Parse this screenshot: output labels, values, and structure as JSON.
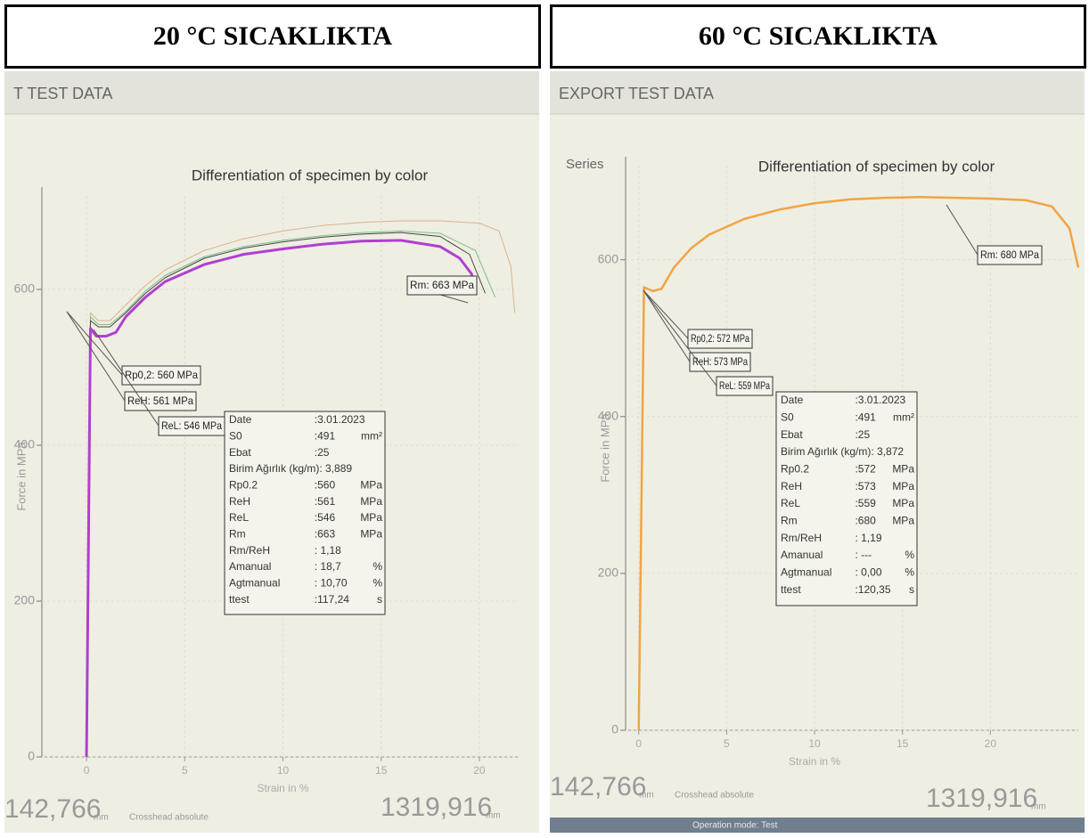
{
  "panels": [
    {
      "heading": "20 °C SICAKLIKTA",
      "window_title": "T TEST DATA",
      "position_left": "142,766",
      "position_left_unit": "mm",
      "position_left_label": "Crosshead absolute",
      "position_right": "1319,916",
      "position_right_unit": "mm",
      "record": [
        {
          "label": "Date",
          "value": ":3.01.2023"
        },
        {
          "label": "S0",
          "value": ":491",
          "unit": "mm²"
        },
        {
          "label": "Ebat",
          "value": ":25"
        },
        {
          "label": "Birim Ağırlık (kg/m): 3,889"
        },
        {
          "label": "Rp0.2",
          "value": ":560",
          "unit": "MPa"
        },
        {
          "label": "ReH",
          "value": ":561",
          "unit": "MPa"
        },
        {
          "label": "ReL",
          "value": ":546",
          "unit": "MPa"
        },
        {
          "label": "Rm",
          "value": ":663",
          "unit": "MPa"
        },
        {
          "label": "Rm/ReH",
          "value": ": 1,18"
        },
        {
          "label": "Amanual",
          "value": ": 18,7",
          "unit": "%"
        },
        {
          "label": "Agtmanual",
          "value": ": 10,70",
          "unit": "%"
        },
        {
          "label": "ttest",
          "value": ":117,24",
          "unit": "s"
        }
      ]
    },
    {
      "heading": "60 °C SICAKLIKTA",
      "window_title": "EXPORT TEST DATA",
      "series_label": "Series",
      "position_left": "142,766",
      "position_left_unit": "mm",
      "position_left_label": "Crosshead absolute",
      "position_right": "1319,916",
      "position_right_unit": "mm",
      "status": "Operation mode: Test",
      "record": [
        {
          "label": "Date",
          "value": ":3.01.2023"
        },
        {
          "label": "S0",
          "value": ":491",
          "unit": "mm²"
        },
        {
          "label": "Ebat",
          "value": ":25"
        },
        {
          "label": "Birim Ağırlık (kg/m): 3,872"
        },
        {
          "label": "Rp0.2",
          "value": ":572",
          "unit": "MPa"
        },
        {
          "label": "ReH",
          "value": ":573",
          "unit": "MPa"
        },
        {
          "label": "ReL",
          "value": ":559",
          "unit": "MPa"
        },
        {
          "label": "Rm",
          "value": ":680",
          "unit": "MPa"
        },
        {
          "label": "Rm/ReH",
          "value": ": 1,19"
        },
        {
          "label": "Amanual",
          "value": ": ---",
          "unit": "%"
        },
        {
          "label": "Agtmanual",
          "value": ": 0,00",
          "unit": "%"
        },
        {
          "label": "ttest",
          "value": ":120,35",
          "unit": "s"
        }
      ]
    }
  ],
  "chart_data": [
    {
      "type": "line",
      "title": "Differentiation of specimen by color",
      "y_label": "Force in MPa",
      "x_label": "Strain in %",
      "xlim": [
        -2,
        22
      ],
      "xticks": [
        0,
        5,
        10,
        15,
        20
      ],
      "ylim": [
        0,
        720
      ],
      "yticks": [
        0,
        200,
        400,
        600
      ],
      "annotations": [
        "Rm: 663 MPa",
        "Rp0,2: 560 MPa",
        "ReH: 561 MPa",
        "ReL: 546 MPa"
      ],
      "series": [
        {
          "color": "#d9b48c",
          "x": [
            0,
            0.2,
            0.6,
            1.2,
            2,
            3,
            4,
            6,
            8,
            10,
            12,
            14,
            16,
            18,
            20,
            21,
            21.6,
            21.8
          ],
          "values": [
            0,
            570,
            560,
            560,
            580,
            605,
            625,
            650,
            665,
            675,
            682,
            686,
            688,
            688,
            685,
            675,
            630,
            570
          ]
        },
        {
          "color": "#7fbf8a",
          "x": [
            0,
            0.2,
            0.6,
            1.2,
            2,
            3,
            4,
            6,
            8,
            10,
            12,
            14,
            16,
            18,
            19.8,
            20.8
          ],
          "values": [
            0,
            565,
            555,
            555,
            572,
            598,
            618,
            642,
            655,
            663,
            669,
            673,
            675,
            672,
            650,
            590
          ]
        },
        {
          "color": "#444444",
          "x": [
            0,
            0.2,
            0.6,
            1.2,
            2,
            3,
            4,
            6,
            8,
            10,
            12,
            14,
            16,
            18,
            19.5,
            20.3
          ],
          "values": [
            0,
            560,
            552,
            552,
            570,
            595,
            615,
            640,
            653,
            661,
            667,
            671,
            673,
            668,
            645,
            595
          ]
        },
        {
          "color": "#b03fd0",
          "x": [
            0,
            0.2,
            0.5,
            1,
            1.5,
            2,
            3,
            4,
            6,
            8,
            10,
            12,
            14,
            16,
            18,
            19,
            19.6,
            19.8
          ],
          "values": [
            0,
            550,
            540,
            540,
            545,
            565,
            590,
            610,
            632,
            645,
            652,
            658,
            662,
            663,
            655,
            640,
            620,
            600
          ]
        }
      ]
    },
    {
      "type": "line",
      "title": "Differentiation of specimen by color",
      "y_label": "Force in MPa",
      "x_label": "Strain in %",
      "xlim": [
        -1,
        25
      ],
      "xticks": [
        0,
        5,
        10,
        15,
        20
      ],
      "ylim": [
        0,
        720
      ],
      "yticks": [
        0,
        200,
        400,
        600
      ],
      "annotations": [
        "Rm: 680 MPa",
        "Rp0,2: 572 MPa",
        "ReH: 573 MPa",
        "ReL: 559 MPa"
      ],
      "series": [
        {
          "color": "#f0a444",
          "x": [
            0,
            0.3,
            0.8,
            1.3,
            2,
            3,
            4,
            6,
            8,
            10,
            12,
            14,
            16,
            18,
            20,
            22,
            23.5,
            24.5,
            25
          ],
          "values": [
            0,
            565,
            560,
            563,
            590,
            615,
            632,
            652,
            664,
            672,
            677,
            679,
            680,
            679,
            678,
            676,
            668,
            640,
            590
          ]
        }
      ]
    }
  ]
}
